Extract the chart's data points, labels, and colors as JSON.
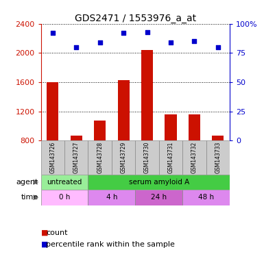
{
  "title": "GDS2471 / 1553976_a_at",
  "samples": [
    "GSM143726",
    "GSM143727",
    "GSM143728",
    "GSM143729",
    "GSM143730",
    "GSM143731",
    "GSM143732",
    "GSM143733"
  ],
  "counts": [
    1600,
    870,
    1070,
    1630,
    2040,
    1160,
    1160,
    870
  ],
  "percentiles": [
    92,
    80,
    84,
    92,
    93,
    84,
    85,
    80
  ],
  "ylim_left": [
    800,
    2400
  ],
  "ylim_right": [
    0,
    100
  ],
  "yticks_left": [
    800,
    1200,
    1600,
    2000,
    2400
  ],
  "yticks_right": [
    0,
    25,
    50,
    75,
    100
  ],
  "bar_color": "#cc1100",
  "dot_color": "#0000cc",
  "agent_row": [
    {
      "label": "untreated",
      "span": [
        0,
        2
      ],
      "color": "#99ee99"
    },
    {
      "label": "serum amyloid A",
      "span": [
        2,
        8
      ],
      "color": "#44cc44"
    }
  ],
  "time_row": [
    {
      "label": "0 h",
      "span": [
        0,
        2
      ],
      "color": "#ffbbff"
    },
    {
      "label": "4 h",
      "span": [
        2,
        4
      ],
      "color": "#dd88ee"
    },
    {
      "label": "24 h",
      "span": [
        4,
        6
      ],
      "color": "#cc66cc"
    },
    {
      "label": "48 h",
      "span": [
        6,
        8
      ],
      "color": "#dd88ee"
    }
  ],
  "legend_items": [
    {
      "color": "#cc1100",
      "label": "count"
    },
    {
      "color": "#0000cc",
      "label": "percentile rank within the sample"
    }
  ],
  "bar_width": 0.5,
  "tick_label_color_left": "#cc1100",
  "tick_label_color_right": "#0000cc",
  "background_color": "#ffffff"
}
